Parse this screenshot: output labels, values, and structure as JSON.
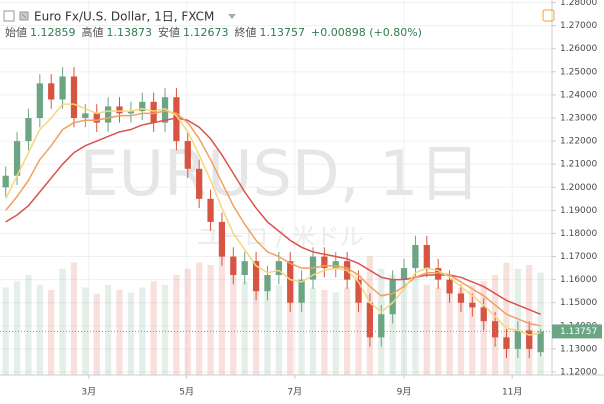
{
  "chart_data": {
    "type": "candlestick",
    "title": "Euro Fx/U.S. Dollar, 1日, FXCM",
    "watermark": "EURUSD, 1日",
    "watermark_sub": "ユーロ / 米ドル",
    "legend_items": [
      {
        "label": "始値",
        "value": "1.12859"
      },
      {
        "label": "高値",
        "value": "1.13873"
      },
      {
        "label": "安値",
        "value": "1.12673"
      },
      {
        "label": "終値",
        "value": "1.13757"
      }
    ],
    "change": "+0.00898 (+0.80%)",
    "x": [
      0,
      1,
      2,
      3,
      4,
      5,
      6,
      7,
      8,
      9,
      10,
      11,
      12,
      13,
      14,
      15,
      16,
      17,
      18,
      19,
      20,
      21,
      22,
      23,
      24,
      25,
      26,
      27,
      28,
      29,
      30,
      31,
      32,
      33,
      34,
      35,
      36,
      37,
      38,
      39,
      40,
      41,
      42,
      43,
      44,
      45,
      46,
      47
    ],
    "xlim": [
      -0.5,
      48
    ],
    "xticks": [
      {
        "value": 7.3,
        "label": "3月"
      },
      {
        "value": 15.9,
        "label": "5月"
      },
      {
        "value": 25.4,
        "label": "7月"
      },
      {
        "value": 35,
        "label": "9月"
      },
      {
        "value": 44.5,
        "label": "11月"
      }
    ],
    "open": [
      1.2,
      1.205,
      1.22,
      1.23,
      1.245,
      1.238,
      1.248,
      1.23,
      1.232,
      1.228,
      1.235,
      1.232,
      1.233,
      1.237,
      1.228,
      1.239,
      1.22,
      1.208,
      1.195,
      1.185,
      1.17,
      1.162,
      1.168,
      1.155,
      1.162,
      1.168,
      1.15,
      1.16,
      1.17,
      1.165,
      1.168,
      1.16,
      1.15,
      1.135,
      1.145,
      1.16,
      1.165,
      1.175,
      1.165,
      1.16,
      1.154,
      1.15,
      1.148,
      1.142,
      1.135,
      1.13,
      1.138,
      1.12859
    ],
    "high": [
      1.209,
      1.224,
      1.234,
      1.249,
      1.249,
      1.252,
      1.252,
      1.236,
      1.236,
      1.239,
      1.239,
      1.237,
      1.241,
      1.241,
      1.243,
      1.243,
      1.224,
      1.212,
      1.199,
      1.189,
      1.174,
      1.172,
      1.172,
      1.166,
      1.172,
      1.172,
      1.164,
      1.174,
      1.174,
      1.172,
      1.172,
      1.164,
      1.154,
      1.149,
      1.164,
      1.169,
      1.179,
      1.179,
      1.169,
      1.164,
      1.158,
      1.154,
      1.152,
      1.146,
      1.139,
      1.142,
      1.142,
      1.13873
    ],
    "low": [
      1.196,
      1.201,
      1.216,
      1.226,
      1.234,
      1.234,
      1.226,
      1.226,
      1.224,
      1.224,
      1.228,
      1.228,
      1.229,
      1.224,
      1.224,
      1.216,
      1.204,
      1.191,
      1.181,
      1.166,
      1.158,
      1.158,
      1.151,
      1.151,
      1.158,
      1.146,
      1.146,
      1.156,
      1.161,
      1.161,
      1.156,
      1.146,
      1.131,
      1.131,
      1.141,
      1.156,
      1.161,
      1.161,
      1.156,
      1.15,
      1.146,
      1.144,
      1.138,
      1.131,
      1.126,
      1.126,
      1.126,
      1.12673
    ],
    "close": [
      1.205,
      1.22,
      1.23,
      1.245,
      1.238,
      1.248,
      1.23,
      1.232,
      1.228,
      1.235,
      1.232,
      1.233,
      1.237,
      1.228,
      1.239,
      1.22,
      1.208,
      1.195,
      1.185,
      1.17,
      1.162,
      1.168,
      1.155,
      1.162,
      1.168,
      1.15,
      1.16,
      1.17,
      1.165,
      1.168,
      1.16,
      1.15,
      1.135,
      1.145,
      1.16,
      1.165,
      1.175,
      1.165,
      1.16,
      1.154,
      1.15,
      1.148,
      1.142,
      1.135,
      1.13,
      1.138,
      1.13,
      1.13757
    ],
    "volume": [
      70,
      75,
      80,
      72,
      68,
      85,
      90,
      70,
      65,
      72,
      68,
      66,
      70,
      75,
      72,
      80,
      85,
      90,
      88,
      95,
      80,
      75,
      78,
      70,
      72,
      85,
      75,
      70,
      68,
      66,
      70,
      80,
      95,
      85,
      80,
      75,
      78,
      72,
      70,
      68,
      70,
      72,
      75,
      80,
      90,
      85,
      88,
      82
    ],
    "volume_lim": [
      0,
      300
    ],
    "up_color": "#6ba583",
    "down_color": "#d75442",
    "series": [
      {
        "color": "#d9534f",
        "values": [
          1.185,
          1.188,
          1.192,
          1.198,
          1.204,
          1.21,
          1.215,
          1.218,
          1.22,
          1.222,
          1.224,
          1.225,
          1.227,
          1.228,
          1.229,
          1.23,
          1.229,
          1.226,
          1.221,
          1.214,
          1.206,
          1.198,
          1.191,
          1.185,
          1.181,
          1.177,
          1.174,
          1.172,
          1.171,
          1.17,
          1.169,
          1.167,
          1.164,
          1.161,
          1.16,
          1.16,
          1.161,
          1.162,
          1.162,
          1.162,
          1.161,
          1.159,
          1.157,
          1.154,
          1.151,
          1.149,
          1.147,
          1.145
        ]
      },
      {
        "color": "#f0a060",
        "values": [
          1.19,
          1.196,
          1.203,
          1.212,
          1.218,
          1.225,
          1.228,
          1.229,
          1.229,
          1.23,
          1.231,
          1.231,
          1.232,
          1.232,
          1.233,
          1.232,
          1.228,
          1.221,
          1.212,
          1.202,
          1.192,
          1.184,
          1.177,
          1.172,
          1.17,
          1.167,
          1.165,
          1.165,
          1.166,
          1.166,
          1.165,
          1.162,
          1.157,
          1.153,
          1.154,
          1.157,
          1.161,
          1.163,
          1.163,
          1.162,
          1.159,
          1.156,
          1.153,
          1.149,
          1.145,
          1.143,
          1.141,
          1.14
        ]
      },
      {
        "color": "#f5d77a",
        "values": [
          1.195,
          1.205,
          1.215,
          1.225,
          1.23,
          1.236,
          1.236,
          1.234,
          1.232,
          1.233,
          1.233,
          1.233,
          1.234,
          1.233,
          1.234,
          1.231,
          1.224,
          1.214,
          1.203,
          1.191,
          1.18,
          1.173,
          1.166,
          1.163,
          1.164,
          1.16,
          1.159,
          1.162,
          1.164,
          1.165,
          1.164,
          1.159,
          1.15,
          1.146,
          1.15,
          1.156,
          1.163,
          1.165,
          1.164,
          1.161,
          1.157,
          1.153,
          1.149,
          1.144,
          1.139,
          1.138,
          1.136,
          1.137
        ]
      }
    ],
    "ylim": [
      1.1187,
      1.2811
    ],
    "yticks": [
      {
        "value": 1.28,
        "label": "1.28000"
      },
      {
        "value": 1.27,
        "label": "1.27000"
      },
      {
        "value": 1.26,
        "label": "1.26000"
      },
      {
        "value": 1.25,
        "label": "1.25000"
      },
      {
        "value": 1.24,
        "label": "1.24000"
      },
      {
        "value": 1.23,
        "label": "1.23000"
      },
      {
        "value": 1.22,
        "label": "1.22000"
      },
      {
        "value": 1.21,
        "label": "1.21000"
      },
      {
        "value": 1.2,
        "label": "1.20000"
      },
      {
        "value": 1.19,
        "label": "1.19000"
      },
      {
        "value": 1.18,
        "label": "1.18000"
      },
      {
        "value": 1.17,
        "label": "1.17000"
      },
      {
        "value": 1.16,
        "label": "1.16000"
      },
      {
        "value": 1.15,
        "label": "1.15000"
      },
      {
        "value": 1.14,
        "label": "1.14000"
      },
      {
        "value": 1.13,
        "label": "1.13000"
      },
      {
        "value": 1.12,
        "label": "1.12000"
      }
    ],
    "grid": true
  }
}
